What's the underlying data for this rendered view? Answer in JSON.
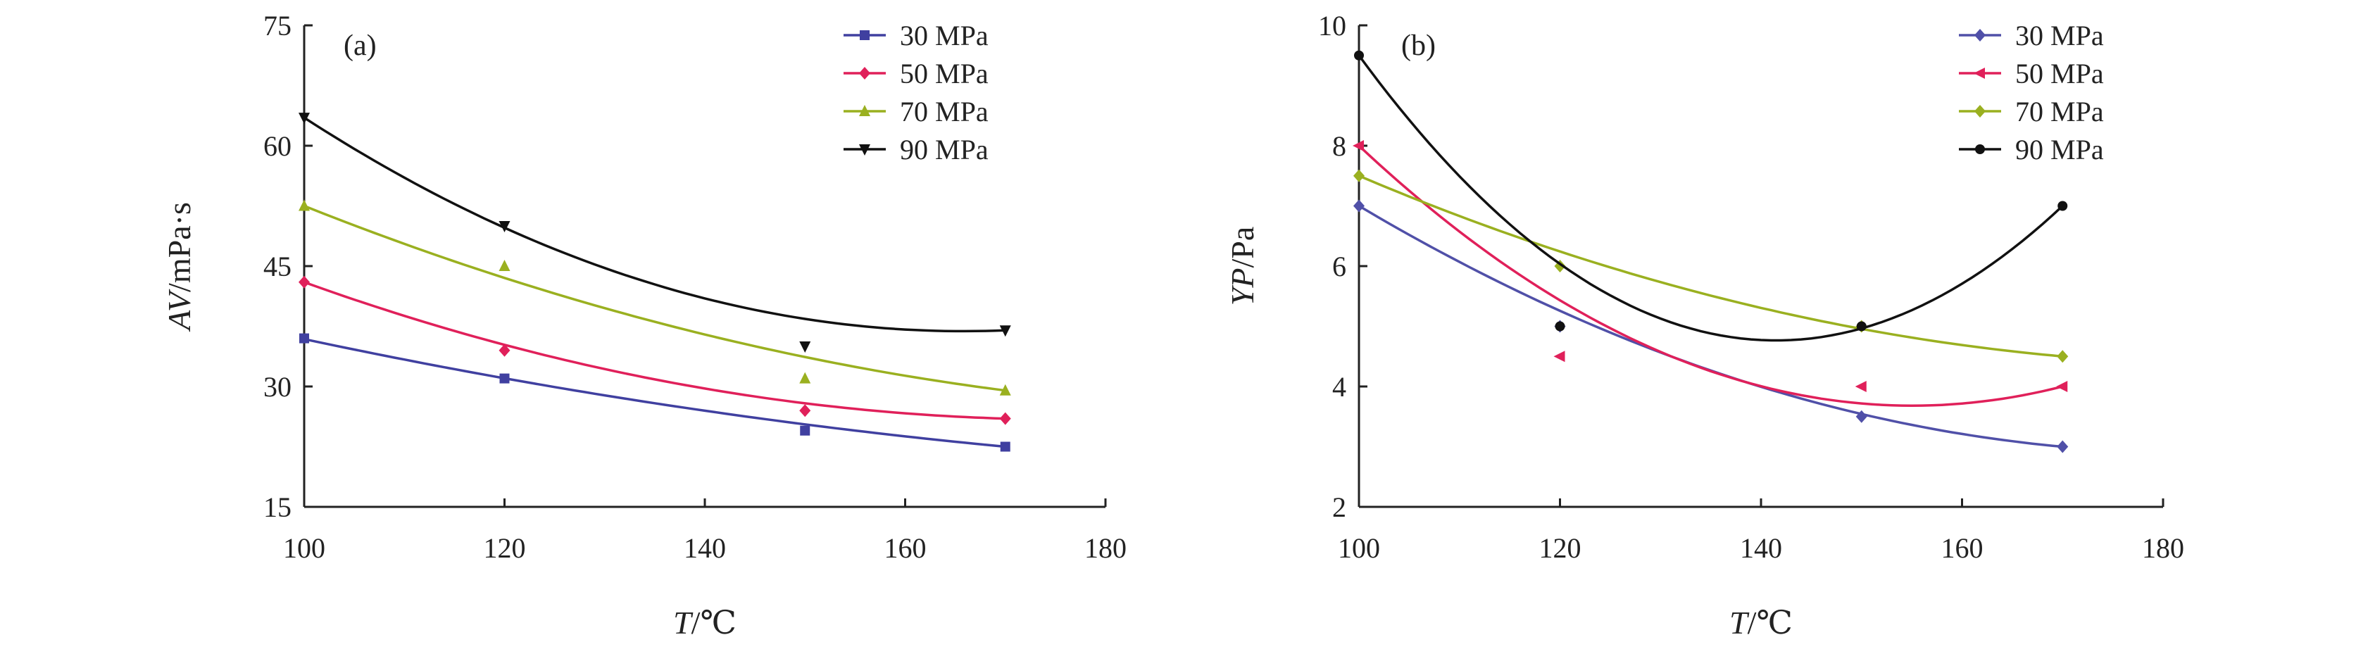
{
  "chart_data": [
    {
      "type": "scatter",
      "panel_label": "(a)",
      "xlabel_var": "T",
      "xlabel_unit": "/℃",
      "ylabel_var": "AV",
      "ylabel_unit": "/mPa·s",
      "xlim": [
        100,
        180
      ],
      "ylim": [
        15,
        75
      ],
      "xticks": [
        "100",
        "120",
        "140",
        "160",
        "180"
      ],
      "yticks": [
        "15",
        "30",
        "45",
        "60",
        "75"
      ],
      "legend_position": "top-right",
      "series": [
        {
          "name": "30 MPa",
          "color": "#4040a0",
          "marker": "square",
          "x": [
            100,
            120,
            150,
            170
          ],
          "y": [
            36,
            31,
            24.5,
            22.5
          ],
          "fit": [
            35.9,
            31.2,
            25.1,
            22.5
          ]
        },
        {
          "name": "50 MPa",
          "color": "#e0205a",
          "marker": "diamond",
          "x": [
            100,
            120,
            150,
            170
          ],
          "y": [
            43,
            34.5,
            27,
            26
          ],
          "fit": [
            43.0,
            35.2,
            27.9,
            26.0
          ]
        },
        {
          "name": "70 MPa",
          "color": "#9ab020",
          "marker": "triangle-up",
          "x": [
            100,
            120,
            150,
            170
          ],
          "y": [
            52.5,
            45,
            31,
            29.5
          ],
          "fit": [
            52.5,
            44.6,
            32.6,
            29.5
          ]
        },
        {
          "name": "90 MPa",
          "color": "#111111",
          "marker": "triangle-down",
          "x": [
            100,
            120,
            150,
            170
          ],
          "y": [
            63.5,
            50,
            35,
            37
          ],
          "fit": [
            63.5,
            50.6,
            37.6,
            37.0
          ]
        }
      ]
    },
    {
      "type": "scatter",
      "panel_label": "(b)",
      "xlabel_var": "T",
      "xlabel_unit": "/℃",
      "ylabel_var": "YP",
      "ylabel_unit": "/Pa",
      "xlim": [
        100,
        180
      ],
      "ylim": [
        2,
        10
      ],
      "xticks": [
        "100",
        "120",
        "140",
        "160",
        "180"
      ],
      "yticks": [
        "2",
        "4",
        "6",
        "8",
        "10"
      ],
      "legend_position": "top-right",
      "series": [
        {
          "name": "30 MPa",
          "color": "#5050a8",
          "marker": "diamond",
          "x": [
            100,
            120,
            150,
            170
          ],
          "y": [
            7,
            5,
            3.5,
            3
          ],
          "fit": [
            7.0,
            5.2,
            3.6,
            3.0
          ]
        },
        {
          "name": "50 MPa",
          "color": "#e0205a",
          "marker": "triangle-left",
          "x": [
            100,
            120,
            150,
            170
          ],
          "y": [
            8,
            4.5,
            4,
            4
          ],
          "fit": [
            8.0,
            5.1,
            4.05,
            4.0
          ]
        },
        {
          "name": "70 MPa",
          "color": "#9ab020",
          "marker": "diamond",
          "x": [
            100,
            120,
            150,
            170
          ],
          "y": [
            7.5,
            6,
            5,
            4.5
          ],
          "fit": [
            7.5,
            6.15,
            5.05,
            4.5
          ]
        },
        {
          "name": "90 MPa",
          "color": "#111111",
          "marker": "circle",
          "x": [
            100,
            120,
            150,
            170
          ],
          "y": [
            9.5,
            5,
            5,
            7
          ],
          "fit": [
            9.5,
            5.75,
            5.25,
            7.0
          ]
        }
      ]
    }
  ]
}
